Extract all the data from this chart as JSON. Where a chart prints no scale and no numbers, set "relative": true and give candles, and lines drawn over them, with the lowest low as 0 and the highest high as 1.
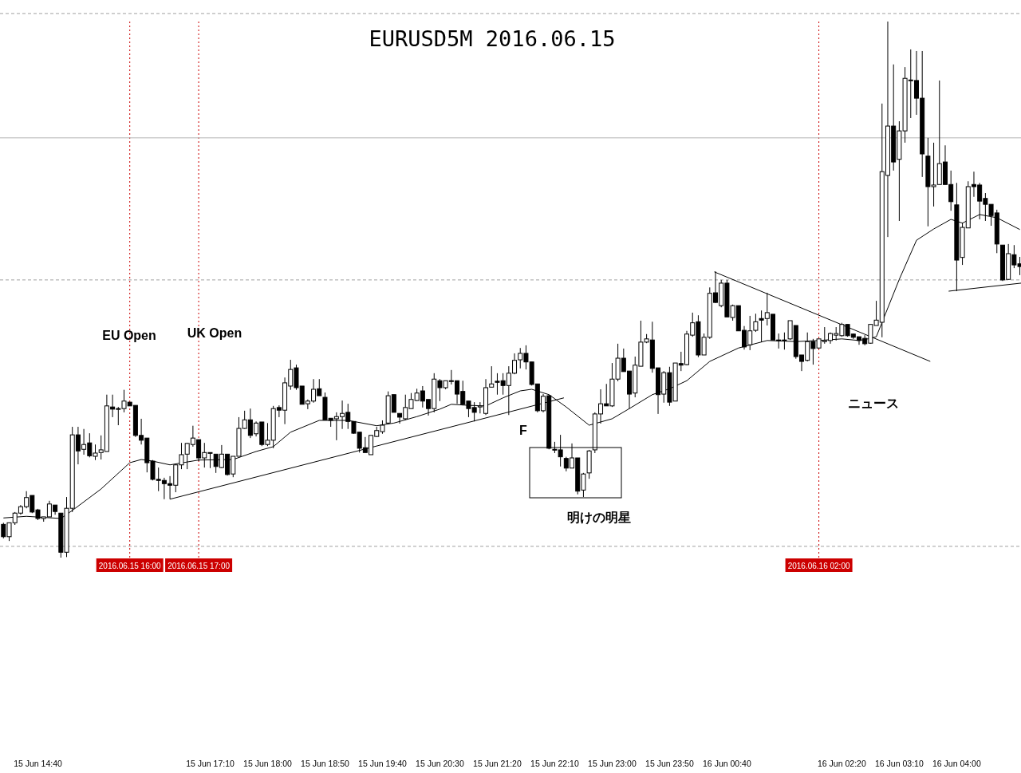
{
  "chart_data": {
    "type": "candlestick",
    "title": "EURUSD5M 2016.06.15",
    "relative": true,
    "xlim": [
      "2016-06-15T14:07",
      "2016-06-16T04:56"
    ],
    "xticks": [
      {
        "value": "2016-06-15T14:40",
        "label": "15 Jun 14:40"
      },
      {
        "value": "2016-06-15T17:10",
        "label": "15 Jun 17:10"
      },
      {
        "value": "2016-06-15T18:00",
        "label": "15 Jun 18:00"
      },
      {
        "value": "2016-06-15T18:50",
        "label": "15 Jun 18:50"
      },
      {
        "value": "2016-06-15T19:40",
        "label": "15 Jun 19:40"
      },
      {
        "value": "2016-06-15T20:30",
        "label": "15 Jun 20:30"
      },
      {
        "value": "2016-06-15T21:20",
        "label": "15 Jun 21:20"
      },
      {
        "value": "2016-06-15T22:10",
        "label": "15 Jun 22:10"
      },
      {
        "value": "2016-06-15T23:00",
        "label": "15 Jun 23:00"
      },
      {
        "value": "2016-06-15T23:50",
        "label": "15 Jun 23:50"
      },
      {
        "value": "2016-06-16T00:40",
        "label": "16 Jun 00:40"
      },
      {
        "value": "2016-06-16T02:20",
        "label": "16 Jun 02:20"
      },
      {
        "value": "2016-06-16T03:10",
        "label": "16 Jun 03:10"
      },
      {
        "value": "2016-06-16T04:00",
        "label": "16 Jun 04:00"
      }
    ],
    "x": [
      "2016-06-15T14:10",
      "2016-06-15T14:15",
      "2016-06-15T14:20",
      "2016-06-15T14:25",
      "2016-06-15T14:30",
      "2016-06-15T14:35",
      "2016-06-15T14:40",
      "2016-06-15T14:45",
      "2016-06-15T14:50",
      "2016-06-15T14:55",
      "2016-06-15T15:00",
      "2016-06-15T15:05",
      "2016-06-15T15:10",
      "2016-06-15T15:15",
      "2016-06-15T15:20",
      "2016-06-15T15:25",
      "2016-06-15T15:30",
      "2016-06-15T15:35",
      "2016-06-15T15:40",
      "2016-06-15T15:45",
      "2016-06-15T15:50",
      "2016-06-15T15:55",
      "2016-06-15T16:00",
      "2016-06-15T16:05",
      "2016-06-15T16:10",
      "2016-06-15T16:15",
      "2016-06-15T16:20",
      "2016-06-15T16:25",
      "2016-06-15T16:30",
      "2016-06-15T16:35",
      "2016-06-15T16:40",
      "2016-06-15T16:45",
      "2016-06-15T16:50",
      "2016-06-15T16:55",
      "2016-06-15T17:00",
      "2016-06-15T17:05",
      "2016-06-15T17:10",
      "2016-06-15T17:15",
      "2016-06-15T17:20",
      "2016-06-15T17:25",
      "2016-06-15T17:30",
      "2016-06-15T17:35",
      "2016-06-15T17:40",
      "2016-06-15T17:45",
      "2016-06-15T17:50",
      "2016-06-15T17:55",
      "2016-06-15T18:00",
      "2016-06-15T18:05",
      "2016-06-15T18:10",
      "2016-06-15T18:15",
      "2016-06-15T18:20",
      "2016-06-15T18:25",
      "2016-06-15T18:30",
      "2016-06-15T18:35",
      "2016-06-15T18:40",
      "2016-06-15T18:45",
      "2016-06-15T18:50",
      "2016-06-15T18:55",
      "2016-06-15T19:00",
      "2016-06-15T19:05",
      "2016-06-15T19:10",
      "2016-06-15T19:15",
      "2016-06-15T19:20",
      "2016-06-15T19:25",
      "2016-06-15T19:30",
      "2016-06-15T19:35",
      "2016-06-15T19:40",
      "2016-06-15T19:45",
      "2016-06-15T19:50",
      "2016-06-15T19:55",
      "2016-06-15T20:00",
      "2016-06-15T20:05",
      "2016-06-15T20:10",
      "2016-06-15T20:15",
      "2016-06-15T20:20",
      "2016-06-15T20:25",
      "2016-06-15T20:30",
      "2016-06-15T20:35",
      "2016-06-15T20:40",
      "2016-06-15T20:45",
      "2016-06-15T20:50",
      "2016-06-15T20:55",
      "2016-06-15T21:00",
      "2016-06-15T21:05",
      "2016-06-15T21:10",
      "2016-06-15T21:15",
      "2016-06-15T21:20",
      "2016-06-15T21:25",
      "2016-06-15T21:30",
      "2016-06-15T21:35",
      "2016-06-15T21:40",
      "2016-06-15T21:45",
      "2016-06-15T21:50",
      "2016-06-15T21:55",
      "2016-06-15T22:00",
      "2016-06-15T22:05",
      "2016-06-15T22:10",
      "2016-06-15T22:15",
      "2016-06-15T22:20",
      "2016-06-15T22:25",
      "2016-06-15T22:30",
      "2016-06-15T22:35",
      "2016-06-15T22:40",
      "2016-06-15T22:45",
      "2016-06-15T22:50",
      "2016-06-15T22:55",
      "2016-06-15T23:00",
      "2016-06-15T23:05",
      "2016-06-15T23:10",
      "2016-06-15T23:15",
      "2016-06-15T23:20",
      "2016-06-15T23:25",
      "2016-06-15T23:30",
      "2016-06-15T23:35",
      "2016-06-15T23:40",
      "2016-06-15T23:45",
      "2016-06-15T23:50",
      "2016-06-15T23:55",
      "2016-06-16T00:00",
      "2016-06-16T00:05",
      "2016-06-16T00:10",
      "2016-06-16T00:15",
      "2016-06-16T00:20",
      "2016-06-16T00:25",
      "2016-06-16T00:30",
      "2016-06-16T00:35",
      "2016-06-16T00:40",
      "2016-06-16T00:45",
      "2016-06-16T00:50",
      "2016-06-16T00:55",
      "2016-06-16T01:00",
      "2016-06-16T01:05",
      "2016-06-16T01:10",
      "2016-06-16T01:15",
      "2016-06-16T01:20",
      "2016-06-16T01:25",
      "2016-06-16T01:30",
      "2016-06-16T01:35",
      "2016-06-16T01:40",
      "2016-06-16T01:45",
      "2016-06-16T01:50",
      "2016-06-16T01:55",
      "2016-06-16T02:00",
      "2016-06-16T02:05",
      "2016-06-16T02:10",
      "2016-06-16T02:15",
      "2016-06-16T02:20",
      "2016-06-16T02:25",
      "2016-06-16T02:30",
      "2016-06-16T02:35",
      "2016-06-16T02:40",
      "2016-06-16T02:45",
      "2016-06-16T02:50",
      "2016-06-16T02:55",
      "2016-06-16T03:00",
      "2016-06-16T03:05",
      "2016-06-16T03:10",
      "2016-06-16T03:15",
      "2016-06-16T03:20",
      "2016-06-16T03:25",
      "2016-06-16T03:30",
      "2016-06-16T03:35",
      "2016-06-16T03:40",
      "2016-06-16T03:45",
      "2016-06-16T03:50",
      "2016-06-16T03:55",
      "2016-06-16T04:00",
      "2016-06-16T04:05",
      "2016-06-16T04:10",
      "2016-06-16T04:15",
      "2016-06-16T04:20",
      "2016-06-16T04:25",
      "2016-06-16T04:30",
      "2016-06-16T04:35",
      "2016-06-16T04:40",
      "2016-06-16T04:45",
      "2016-06-16T04:50",
      "2016-06-16T04:55"
    ],
    "ohlc": [
      [
        0.062,
        0.065,
        0.036,
        0.039
      ],
      [
        0.039,
        0.065,
        0.031,
        0.065
      ],
      [
        0.065,
        0.085,
        0.061,
        0.083
      ],
      [
        0.083,
        0.098,
        0.08,
        0.095
      ],
      [
        0.095,
        0.124,
        0.092,
        0.112
      ],
      [
        0.116,
        0.116,
        0.083,
        0.085
      ],
      [
        0.089,
        0.091,
        0.07,
        0.073
      ],
      [
        0.073,
        0.076,
        0.067,
        0.076
      ],
      [
        0.076,
        0.106,
        0.076,
        0.1
      ],
      [
        0.098,
        0.098,
        0.08,
        0.086
      ],
      [
        0.083,
        0.083,
        0,
        0.01
      ],
      [
        0.01,
        0.113,
        0.001,
        0.092
      ],
      [
        0.092,
        0.244,
        0.085,
        0.229
      ],
      [
        0.229,
        0.244,
        0.174,
        0.199
      ],
      [
        0.202,
        0.24,
        0.192,
        0.211
      ],
      [
        0.214,
        0.232,
        0.187,
        0.19
      ],
      [
        0.189,
        0.211,
        0.182,
        0.195
      ],
      [
        0.196,
        0.228,
        0.183,
        0.201
      ],
      [
        0.198,
        0.304,
        0.198,
        0.283
      ],
      [
        0.281,
        0.304,
        0.262,
        0.277
      ],
      [
        0.277,
        0.281,
        0.247,
        0.278
      ],
      [
        0.278,
        0.313,
        0.271,
        0.292
      ],
      [
        0.29,
        0.29,
        0.283,
        0.283
      ],
      [
        0.284,
        0.284,
        0.225,
        0.228
      ],
      [
        0.228,
        0.259,
        0.211,
        0.219
      ],
      [
        0.223,
        0.223,
        0.159,
        0.177
      ],
      [
        0.18,
        0.182,
        0.144,
        0.146
      ],
      [
        0.146,
        0.168,
        0.124,
        0.144
      ],
      [
        0.144,
        0.149,
        0.109,
        0.138
      ],
      [
        0.138,
        0.152,
        0.109,
        0.135
      ],
      [
        0.135,
        0.174,
        0.122,
        0.173
      ],
      [
        0.173,
        0.214,
        0.165,
        0.192
      ],
      [
        0.193,
        0.214,
        0.165,
        0.213
      ],
      [
        0.211,
        0.246,
        0.207,
        0.223
      ],
      [
        0.22,
        0.22,
        0.18,
        0.186
      ],
      [
        0.186,
        0.214,
        0.168,
        0.196
      ],
      [
        0.196,
        0.196,
        0.167,
        0.195
      ],
      [
        0.193,
        0.193,
        0.158,
        0.17
      ],
      [
        0.168,
        0.21,
        0.167,
        0.193
      ],
      [
        0.193,
        0.193,
        0.153,
        0.155
      ],
      [
        0.156,
        0.189,
        0.15,
        0.189
      ],
      [
        0.189,
        0.262,
        0.189,
        0.241
      ],
      [
        0.241,
        0.274,
        0.24,
        0.257
      ],
      [
        0.257,
        0.278,
        0.223,
        0.228
      ],
      [
        0.231,
        0.254,
        0.226,
        0.251
      ],
      [
        0.253,
        0.253,
        0.208,
        0.211
      ],
      [
        0.211,
        0.251,
        0.208,
        0.219
      ],
      [
        0.219,
        0.283,
        0.204,
        0.278
      ],
      [
        0.28,
        0.284,
        0.262,
        0.275
      ],
      [
        0.275,
        0.336,
        0.249,
        0.326
      ],
      [
        0.32,
        0.369,
        0.313,
        0.351
      ],
      [
        0.354,
        0.36,
        0.313,
        0.317
      ],
      [
        0.32,
        0.32,
        0.286,
        0.286
      ],
      [
        0.287,
        0.295,
        0.277,
        0.292
      ],
      [
        0.292,
        0.333,
        0.289,
        0.314
      ],
      [
        0.315,
        0.333,
        0.302,
        0.302
      ],
      [
        0.299,
        0.308,
        0.257,
        0.257
      ],
      [
        0.26,
        0.26,
        0.244,
        0.256
      ],
      [
        0.259,
        0.271,
        0.219,
        0.263
      ],
      [
        0.263,
        0.293,
        0.24,
        0.269
      ],
      [
        0.271,
        0.287,
        0.24,
        0.254
      ],
      [
        0.254,
        0.254,
        0.231,
        0.232
      ],
      [
        0.234,
        0.234,
        0.196,
        0.204
      ],
      [
        0.205,
        0.225,
        0.196,
        0.196
      ],
      [
        0.192,
        0.228,
        0.192,
        0.228
      ],
      [
        0.226,
        0.244,
        0.225,
        0.237
      ],
      [
        0.235,
        0.256,
        0.231,
        0.247
      ],
      [
        0.251,
        0.31,
        0.249,
        0.302
      ],
      [
        0.304,
        0.304,
        0.271,
        0.271
      ],
      [
        0.269,
        0.269,
        0.25,
        0.262
      ],
      [
        0.259,
        0.304,
        0.257,
        0.28
      ],
      [
        0.278,
        0.307,
        0.278,
        0.295
      ],
      [
        0.293,
        0.315,
        0.292,
        0.307
      ],
      [
        0.311,
        0.32,
        0.28,
        0.292
      ],
      [
        0.295,
        0.295,
        0.265,
        0.278
      ],
      [
        0.278,
        0.344,
        0.271,
        0.333
      ],
      [
        0.33,
        0.333,
        0.292,
        0.317
      ],
      [
        0.317,
        0.33,
        0.314,
        0.33
      ],
      [
        0.329,
        0.35,
        0.323,
        0.33
      ],
      [
        0.33,
        0.33,
        0.287,
        0.305
      ],
      [
        0.31,
        0.33,
        0.284,
        0.286
      ],
      [
        0.292,
        0.292,
        0.262,
        0.278
      ],
      [
        0.28,
        0.29,
        0.254,
        0.271
      ],
      [
        0.281,
        0.29,
        0.269,
        0.283
      ],
      [
        0.269,
        0.333,
        0.266,
        0.317
      ],
      [
        0.318,
        0.357,
        0.318,
        0.324
      ],
      [
        0.329,
        0.344,
        0.304,
        0.327
      ],
      [
        0.33,
        0.344,
        0.304,
        0.321
      ],
      [
        0.321,
        0.357,
        0.266,
        0.344
      ],
      [
        0.344,
        0.381,
        0.342,
        0.368
      ],
      [
        0.369,
        0.391,
        0.353,
        0.381
      ],
      [
        0.381,
        0.396,
        0.351,
        0.365
      ],
      [
        0.365,
        0.365,
        0.321,
        0.323
      ],
      [
        0.324,
        0.324,
        0.271,
        0.274
      ],
      [
        0.274,
        0.305,
        0.271,
        0.301
      ],
      [
        0.302,
        0.304,
        0.202,
        0.204
      ],
      [
        0.202,
        0.216,
        0.195,
        0.201
      ],
      [
        0.201,
        0.229,
        0.17,
        0.188
      ],
      [
        0.185,
        0.188,
        0.161,
        0.167
      ],
      [
        0.167,
        0.213,
        0.167,
        0.186
      ],
      [
        0.186,
        0.186,
        0.118,
        0.124
      ],
      [
        0.126,
        0.158,
        0.113,
        0.156
      ],
      [
        0.158,
        0.201,
        0.147,
        0.199
      ],
      [
        0.201,
        0.271,
        0.195,
        0.268
      ],
      [
        0.268,
        0.314,
        0.25,
        0.287
      ],
      [
        0.287,
        0.324,
        0.283,
        0.283
      ],
      [
        0.283,
        0.363,
        0.281,
        0.333
      ],
      [
        0.333,
        0.399,
        0.329,
        0.372
      ],
      [
        0.372,
        0.39,
        0.347,
        0.347
      ],
      [
        0.348,
        0.348,
        0.278,
        0.305
      ],
      [
        0.307,
        0.375,
        0.299,
        0.359
      ],
      [
        0.357,
        0.442,
        0.357,
        0.402
      ],
      [
        0.402,
        0.417,
        0.4,
        0.408
      ],
      [
        0.406,
        0.44,
        0.345,
        0.353
      ],
      [
        0.354,
        0.354,
        0.268,
        0.304
      ],
      [
        0.305,
        0.348,
        0.289,
        0.345
      ],
      [
        0.345,
        0.356,
        0.283,
        0.29
      ],
      [
        0.292,
        0.363,
        0.292,
        0.363
      ],
      [
        0.362,
        0.384,
        0.348,
        0.359
      ],
      [
        0.36,
        0.423,
        0.359,
        0.417
      ],
      [
        0.415,
        0.457,
        0.412,
        0.438
      ],
      [
        0.44,
        0.452,
        0.374,
        0.378
      ],
      [
        0.378,
        0.418,
        0.378,
        0.411
      ],
      [
        0.411,
        0.504,
        0.408,
        0.493
      ],
      [
        0.494,
        0.534,
        0.475,
        0.476
      ],
      [
        0.47,
        0.518,
        0.467,
        0.512
      ],
      [
        0.512,
        0.518,
        0.449,
        0.449
      ],
      [
        0.448,
        0.472,
        0.442,
        0.47
      ],
      [
        0.47,
        0.47,
        0.423,
        0.423
      ],
      [
        0.424,
        0.432,
        0.388,
        0.393
      ],
      [
        0.397,
        0.451,
        0.387,
        0.423
      ],
      [
        0.424,
        0.455,
        0.421,
        0.44
      ],
      [
        0.446,
        0.461,
        0.402,
        0.443
      ],
      [
        0.446,
        0.494,
        0.433,
        0.457
      ],
      [
        0.454,
        0.454,
        0.406,
        0.406
      ],
      [
        0.406,
        0.418,
        0.39,
        0.405
      ],
      [
        0.406,
        0.42,
        0.388,
        0.405
      ],
      [
        0.408,
        0.442,
        0.406,
        0.442
      ],
      [
        0.433,
        0.433,
        0.371,
        0.375
      ],
      [
        0.378,
        0.378,
        0.348,
        0.366
      ],
      [
        0.368,
        0.42,
        0.366,
        0.403
      ],
      [
        0.403,
        0.408,
        0.36,
        0.39
      ],
      [
        0.391,
        0.408,
        0.39,
        0.408
      ],
      [
        0.403,
        0.43,
        0.399,
        0.405
      ],
      [
        0.405,
        0.42,
        0.399,
        0.418
      ],
      [
        0.415,
        0.43,
        0.405,
        0.418
      ],
      [
        0.414,
        0.438,
        0.412,
        0.435
      ],
      [
        0.435,
        0.435,
        0.412,
        0.414
      ],
      [
        0.417,
        0.418,
        0.408,
        0.411
      ],
      [
        0.412,
        0.412,
        0.397,
        0.405
      ],
      [
        0.409,
        0.415,
        0.396,
        0.399
      ],
      [
        0.4,
        0.435,
        0.399,
        0.435
      ],
      [
        0.433,
        0.479,
        0.433,
        0.443
      ],
      [
        0.439,
        0.847,
        0.411,
        0.72
      ],
      [
        0.713,
        1,
        0.598,
        0.805
      ],
      [
        0.805,
        0.92,
        0.722,
        0.738
      ],
      [
        0.743,
        0.814,
        0.628,
        0.796
      ],
      [
        0.796,
        0.915,
        0.774,
        0.894
      ],
      [
        0.891,
        0.948,
        0.82,
        0.891
      ],
      [
        0.89,
        0.945,
        0.826,
        0.857
      ],
      [
        0.857,
        0.945,
        0.71,
        0.753
      ],
      [
        0.749,
        0.783,
        0.618,
        0.692
      ],
      [
        0.692,
        0.774,
        0.655,
        0.695
      ],
      [
        0.696,
        0.89,
        0.696,
        0.735
      ],
      [
        0.738,
        0.769,
        0.696,
        0.696
      ],
      [
        0.696,
        0.722,
        0.647,
        0.664
      ],
      [
        0.658,
        0.699,
        0.497,
        0.555
      ],
      [
        0.56,
        0.625,
        0.546,
        0.616
      ],
      [
        0.615,
        0.702,
        0.615,
        0.692
      ],
      [
        0.696,
        0.72,
        0.673,
        0.692
      ],
      [
        0.695,
        0.699,
        0.631,
        0.665
      ],
      [
        0.67,
        0.68,
        0.628,
        0.659
      ],
      [
        0.659,
        0.659,
        0.619,
        0.638
      ],
      [
        0.643,
        0.649,
        0.568,
        0.585
      ],
      [
        0.583,
        0.583,
        0.516,
        0.518
      ],
      [
        0.519,
        0.585,
        0.518,
        0.567
      ],
      [
        0.565,
        0.583,
        0.54,
        0.546
      ],
      [
        0.548,
        0.561,
        0.527,
        0.543
      ]
    ],
    "series": [
      {
        "type": "line",
        "color": "#000000",
        "x": [
          "2016-06-15T14:10",
          "2016-06-15T14:30",
          "2016-06-15T15:00",
          "2016-06-15T15:10",
          "2016-06-15T15:35",
          "2016-06-15T16:00",
          "2016-06-15T16:10",
          "2016-06-15T16:20",
          "2016-06-15T16:35",
          "2016-06-15T17:00",
          "2016-06-15T17:30",
          "2016-06-15T17:50",
          "2016-06-15T18:05",
          "2016-06-15T18:20",
          "2016-06-15T18:45",
          "2016-06-15T19:10",
          "2016-06-15T19:35",
          "2016-06-15T19:50",
          "2016-06-15T20:10",
          "2016-06-15T20:30",
          "2016-06-15T20:40",
          "2016-06-15T20:55",
          "2016-06-15T21:10",
          "2016-06-15T21:25",
          "2016-06-15T21:40",
          "2016-06-15T21:50",
          "2016-06-15T22:05",
          "2016-06-15T22:20",
          "2016-06-15T22:40",
          "2016-06-15T23:00",
          "2016-06-15T23:15",
          "2016-06-15T23:35",
          "2016-06-15T23:50",
          "2016-06-16T00:05",
          "2016-06-16T00:25",
          "2016-06-16T00:50",
          "2016-06-16T01:15",
          "2016-06-16T01:40",
          "2016-06-16T02:00",
          "2016-06-16T02:20",
          "2016-06-16T02:35",
          "2016-06-16T02:45",
          "2016-06-16T02:50",
          "2016-06-16T03:10",
          "2016-06-16T03:25",
          "2016-06-16T03:40",
          "2016-06-16T03:55",
          "2016-06-16T04:05",
          "2016-06-16T04:20",
          "2016-06-16T04:35",
          "2016-06-16T04:55"
        ],
        "values": [
          0.074,
          0.077,
          0.073,
          0.088,
          0.128,
          0.177,
          0.183,
          0.18,
          0.173,
          0.182,
          0.183,
          0.198,
          0.207,
          0.234,
          0.256,
          0.256,
          0.246,
          0.251,
          0.263,
          0.277,
          0.286,
          0.284,
          0.283,
          0.298,
          0.311,
          0.314,
          0.304,
          0.281,
          0.247,
          0.259,
          0.278,
          0.304,
          0.315,
          0.33,
          0.366,
          0.391,
          0.405,
          0.403,
          0.405,
          0.408,
          0.405,
          0.409,
          0.412,
          0.519,
          0.592,
          0.613,
          0.631,
          0.624,
          0.64,
          0.634,
          0.612
        ]
      },
      {
        "type": "line",
        "color": "#000000",
        "x": [
          "2016-06-15T16:35",
          "2016-06-15T22:18"
        ],
        "values": [
          0.109,
          0.298
        ]
      },
      {
        "type": "line",
        "color": "#000000",
        "x": [
          "2016-06-16T00:29",
          "2016-06-16T03:37"
        ],
        "values": [
          0.533,
          0.366
        ]
      },
      {
        "type": "line",
        "color": "#000000",
        "x": [
          "2016-06-16T03:53",
          "2016-06-16T04:56"
        ],
        "values": [
          0.497,
          0.512
        ]
      }
    ],
    "ref_lines": [
      {
        "axis": "x",
        "value": "2016-06-15T16:00",
        "label": "2016.06.15 16:00",
        "color": "#cc0000",
        "line_style": "dotted"
      },
      {
        "axis": "x",
        "value": "2016-06-15T17:00",
        "label": "2016.06.15 17:00",
        "color": "#cc0000",
        "line_style": "dotted"
      },
      {
        "axis": "x",
        "value": "2016-06-16T02:00",
        "label": "2016.06.16 02:00",
        "color": "#cc0000",
        "line_style": "dotted"
      },
      {
        "axis": "y",
        "value": 1.015,
        "color": "#a0a0a0",
        "line_style": "dashed"
      },
      {
        "axis": "y",
        "value": 0.783,
        "color": "#b4b4b4",
        "line_style": "solid"
      },
      {
        "axis": "y",
        "value": 0.518,
        "color": "#a0a0a0",
        "line_style": "dashed"
      },
      {
        "axis": "y",
        "value": 0.021,
        "color": "#a0a0a0",
        "line_style": "dashed"
      }
    ],
    "annotations": [
      "EU Open",
      "UK Open",
      "F",
      "明けの明星",
      "ニュース"
    ]
  }
}
